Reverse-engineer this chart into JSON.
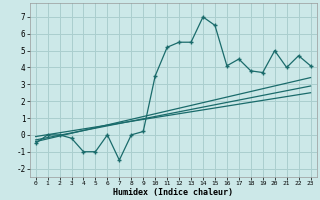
{
  "xlabel": "Humidex (Indice chaleur)",
  "bg_color": "#cce8e8",
  "grid_color": "#aacece",
  "line_color": "#1a6b6b",
  "xlim": [
    -0.5,
    23.5
  ],
  "ylim": [
    -2.5,
    7.8
  ],
  "xticks": [
    0,
    1,
    2,
    3,
    4,
    5,
    6,
    7,
    8,
    9,
    10,
    11,
    12,
    13,
    14,
    15,
    16,
    17,
    18,
    19,
    20,
    21,
    22,
    23
  ],
  "yticks": [
    -2,
    -1,
    0,
    1,
    2,
    3,
    4,
    5,
    6,
    7
  ],
  "main_x": [
    0,
    1,
    2,
    3,
    4,
    5,
    6,
    7,
    8,
    9,
    10,
    11,
    12,
    13,
    14,
    15,
    16,
    17,
    18,
    19,
    20,
    21,
    22,
    23
  ],
  "main_y": [
    -0.5,
    0.0,
    0.0,
    -0.2,
    -1.0,
    -1.0,
    0.0,
    -1.5,
    0.0,
    0.2,
    3.5,
    5.2,
    5.5,
    5.5,
    7.0,
    6.5,
    4.1,
    4.5,
    3.8,
    3.7,
    5.0,
    4.0,
    4.7,
    4.1
  ],
  "line1_x": [
    0,
    23
  ],
  "line1_y": [
    -0.4,
    3.4
  ],
  "line2_x": [
    0,
    23
  ],
  "line2_y": [
    -0.3,
    2.9
  ],
  "line3_x": [
    0,
    23
  ],
  "line3_y": [
    -0.1,
    2.5
  ]
}
